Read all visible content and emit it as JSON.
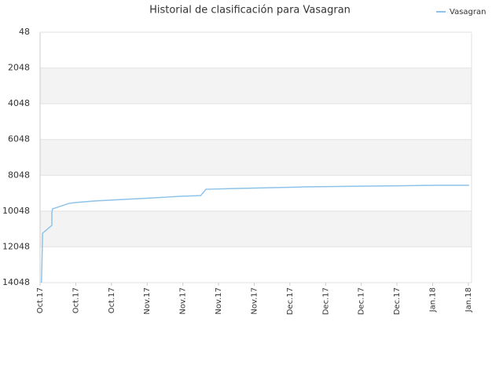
{
  "chart_data": {
    "type": "line",
    "title": "Historial de clasificación para Vasagran",
    "x": [
      0.04,
      0.07,
      0.33,
      0.33,
      0.35,
      0.81,
      0.99,
      1.48,
      1.89,
      2.29,
      2.71,
      3.13,
      3.54,
      3.94,
      4.5,
      4.65,
      5.55,
      7.42,
      9.25,
      11.1,
      12.02
    ],
    "series": [
      {
        "name": "Vasagran",
        "color": "#8dc3ea",
        "values": [
          14048,
          11286,
          10845,
          10101,
          9925,
          9618,
          9574,
          9487,
          9443,
          9399,
          9355,
          9311,
          9267,
          9223,
          9179,
          8828,
          8784,
          8696,
          8652,
          8608,
          8608
        ]
      }
    ],
    "xlim": [
      0,
      12.09
    ],
    "xticks": [
      {
        "value": 0,
        "label": "Oct.17"
      },
      {
        "value": 1,
        "label": "Oct.17"
      },
      {
        "value": 2,
        "label": "Oct.17"
      },
      {
        "value": 3,
        "label": "Nov.17"
      },
      {
        "value": 4,
        "label": "Nov.17"
      },
      {
        "value": 5,
        "label": "Nov.17"
      },
      {
        "value": 6,
        "label": "Nov.17"
      },
      {
        "value": 7,
        "label": "Dec.17"
      },
      {
        "value": 8,
        "label": "Dec.17"
      },
      {
        "value": 9,
        "label": "Dec.17"
      },
      {
        "value": 10,
        "label": "Dec.17"
      },
      {
        "value": 11,
        "label": "Jan.18"
      },
      {
        "value": 12,
        "label": "Jan.18"
      }
    ],
    "ylim": [
      48,
      14048
    ],
    "y_inverted": true,
    "yticks": [
      48,
      2048,
      4048,
      6048,
      8048,
      10048,
      12048,
      14048
    ],
    "grid": true,
    "band_color": "#f3f3f3",
    "legend": "top-right"
  }
}
